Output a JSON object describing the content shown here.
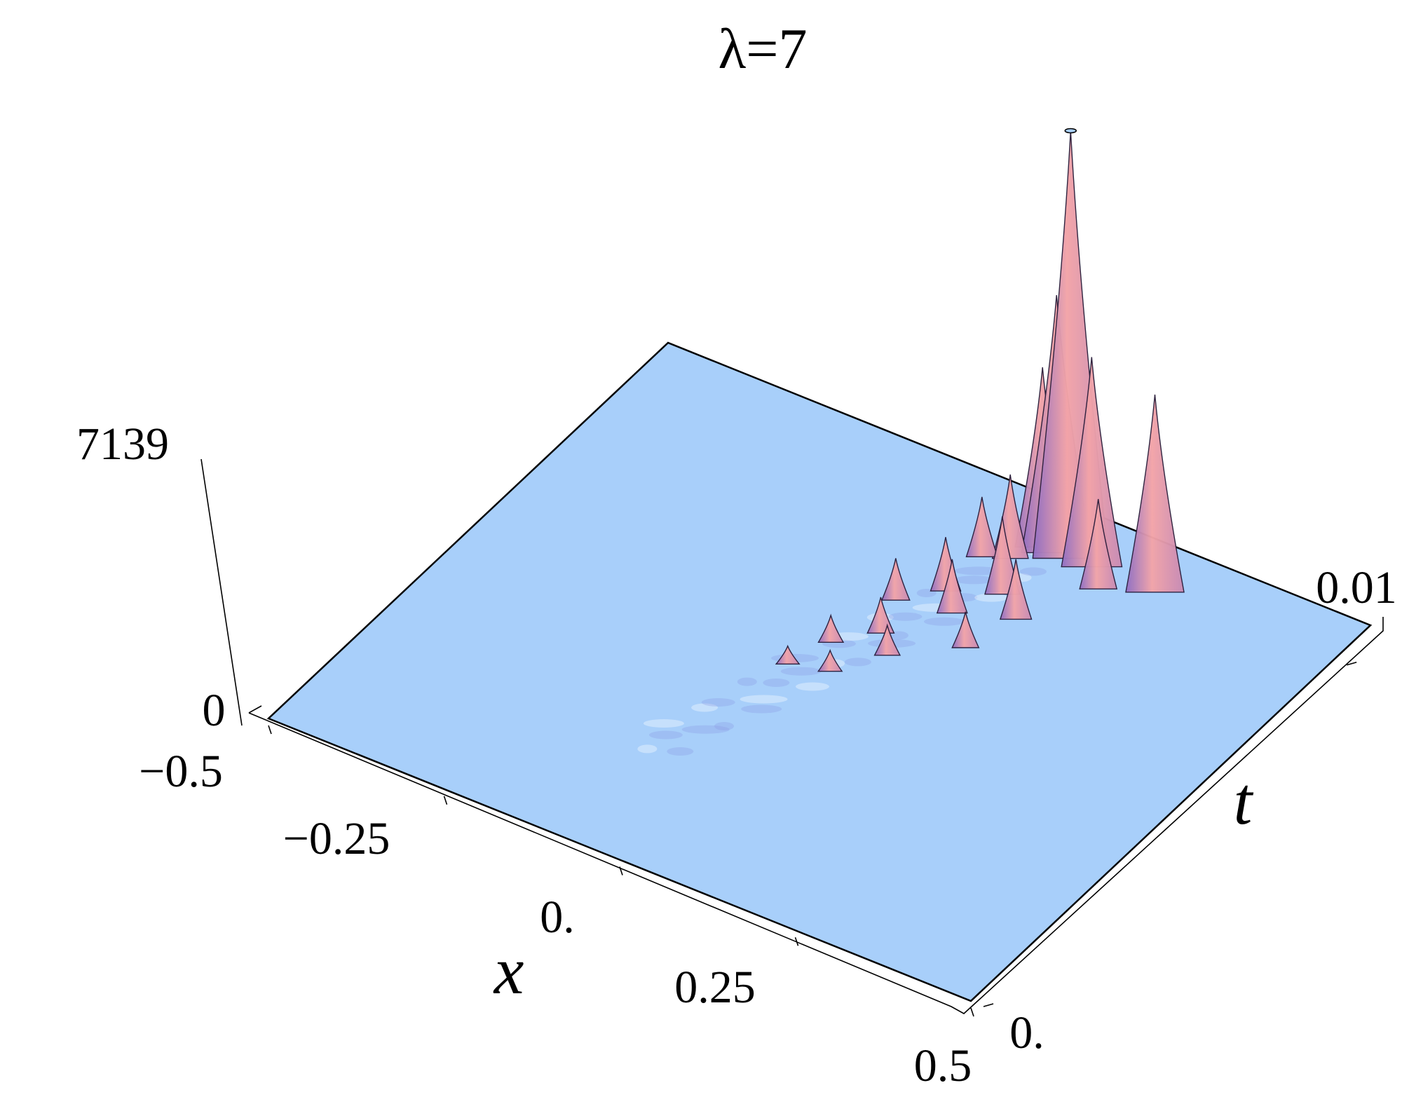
{
  "chart_data": {
    "type": "surface3d",
    "title": "λ=7",
    "xlabel": "x",
    "ylabel": "t",
    "zlabel": "",
    "x_ticks": [
      "−0.5",
      "−0.25",
      "0.",
      "0.25",
      "0.5"
    ],
    "x_tick_values": [
      -0.5,
      -0.25,
      0,
      0.25,
      0.5
    ],
    "t_ticks": [
      "0.",
      "0.01"
    ],
    "t_tick_values": [
      0,
      0.01
    ],
    "z_ticks": [
      "0",
      "7139"
    ],
    "z_tick_values": [
      0,
      7139
    ],
    "xlim": [
      -0.5,
      0.5
    ],
    "tlim": [
      0,
      0.011
    ],
    "zlim": [
      0,
      7139
    ],
    "colors": {
      "base": "#a8cffa",
      "peak_dark": "#9a72c8",
      "peak_light": "#f4a8a8"
    },
    "peaks": [
      {
        "x": 0.13,
        "t": 0.0099,
        "z": 7139
      },
      {
        "x": 0.11,
        "t": 0.0099,
        "z": 4300
      },
      {
        "x": 0.16,
        "t": 0.0099,
        "z": 3500
      },
      {
        "x": 0.25,
        "t": 0.0099,
        "z": 3300
      },
      {
        "x": 0.09,
        "t": 0.0099,
        "z": 3000
      },
      {
        "x": 0.19,
        "t": 0.0095,
        "z": 1500
      },
      {
        "x": 0.07,
        "t": 0.0094,
        "z": 1400
      },
      {
        "x": 0.04,
        "t": 0.0092,
        "z": 1000
      },
      {
        "x": 0.1,
        "t": 0.0086,
        "z": 1300
      },
      {
        "x": 0.04,
        "t": 0.0082,
        "z": 900
      },
      {
        "x": 0.14,
        "t": 0.0082,
        "z": 1000
      },
      {
        "x": 0.0,
        "t": 0.0076,
        "z": 700
      },
      {
        "x": 0.07,
        "t": 0.0078,
        "z": 900
      },
      {
        "x": 0.02,
        "t": 0.0068,
        "z": 600
      },
      {
        "x": 0.12,
        "t": 0.0072,
        "z": 600
      },
      {
        "x": -0.02,
        "t": 0.0062,
        "z": 450
      },
      {
        "x": 0.05,
        "t": 0.0064,
        "z": 500
      },
      {
        "x": -0.04,
        "t": 0.0054,
        "z": 300
      },
      {
        "x": 0.01,
        "t": 0.0056,
        "z": 350
      }
    ]
  }
}
